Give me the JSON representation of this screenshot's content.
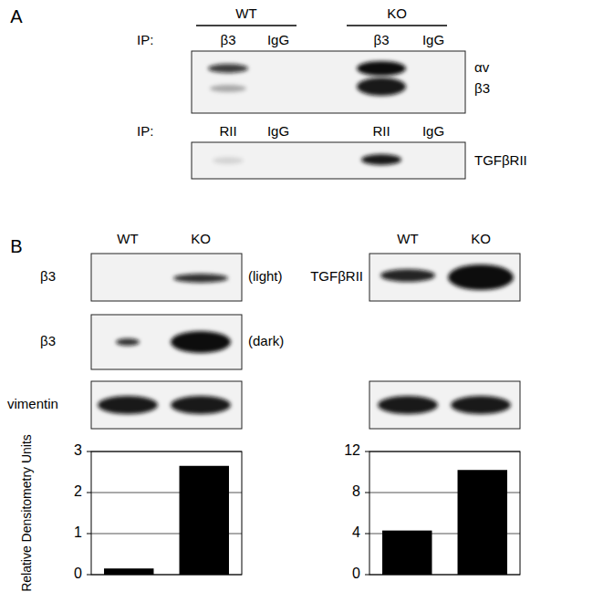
{
  "panel_a": {
    "label": "A",
    "groups": [
      "WT",
      "KO"
    ],
    "rows": [
      {
        "ip_label": "IP:",
        "lanes": [
          "β3",
          "IgG",
          "β3",
          "IgG"
        ],
        "bands": [
          "αv",
          "β3"
        ]
      },
      {
        "ip_label": "IP:",
        "lanes": [
          "RII",
          "IgG",
          "RII",
          "IgG"
        ],
        "bands": [
          "TGFβRII"
        ]
      }
    ]
  },
  "panel_b": {
    "label": "B",
    "left": {
      "lanes": [
        "WT",
        "KO"
      ],
      "blots": [
        {
          "label": "β3",
          "note": "(light)"
        },
        {
          "label": "β3",
          "note": "(dark)"
        },
        {
          "label": "vimentin"
        }
      ]
    },
    "right": {
      "lanes": [
        "WT",
        "KO"
      ],
      "blots": [
        {
          "label": "TGFβRII"
        }
      ]
    }
  },
  "chart_data": [
    {
      "type": "bar",
      "categories": [
        null,
        null
      ],
      "values": [
        0.15,
        2.65
      ],
      "color": "#000000",
      "ylabel": "Relative Densitometry Units",
      "ylim": [
        0,
        3
      ],
      "yticks": [
        0,
        1,
        2,
        3
      ],
      "grid": true
    },
    {
      "type": "bar",
      "categories": [
        null,
        null
      ],
      "values": [
        4.3,
        10.2
      ],
      "color": "#000000",
      "ylim": [
        0,
        12
      ],
      "yticks": [
        0,
        4,
        8,
        12
      ],
      "grid": true
    }
  ]
}
